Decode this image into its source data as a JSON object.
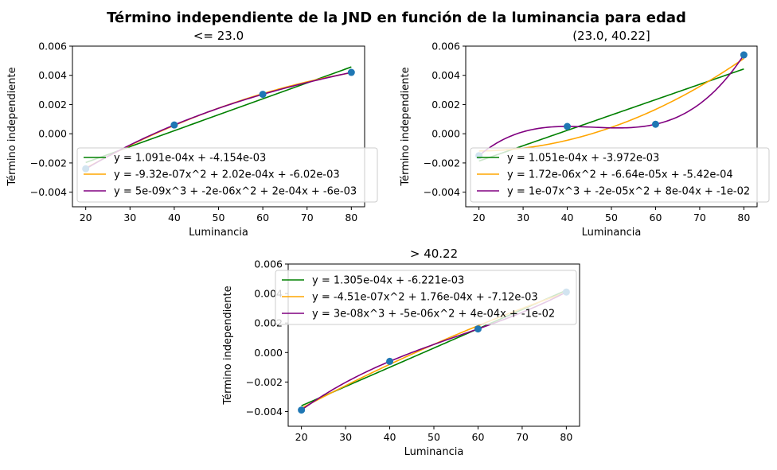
{
  "figure": {
    "suptitle": "Término independiente de la JND en función de la luminancia para edad"
  },
  "chart_data": [
    {
      "type": "scatter",
      "title": "<= 23.0",
      "xlabel": "Luminancia",
      "ylabel": "Término independiente",
      "xlim": [
        17,
        83
      ],
      "ylim": [
        -0.005,
        0.006
      ],
      "xticks": [
        20,
        30,
        40,
        50,
        60,
        70,
        80
      ],
      "yticks": [
        -0.004,
        -0.002,
        0.0,
        0.002,
        0.004,
        0.006
      ],
      "ytick_labels": [
        "−0.004",
        "−0.002",
        "0.000",
        "0.002",
        "0.004",
        "0.006"
      ],
      "legend_loc": "lower right",
      "points": {
        "x": [
          20,
          40,
          60,
          80
        ],
        "y": [
          -0.0024,
          0.0006,
          0.0027,
          0.0042
        ],
        "color": "#1f77b4"
      },
      "fits": [
        {
          "name": "y = 1.091e-04x + -4.154e-03",
          "color": "#008000",
          "coeffs": [
            -0.004154,
            0.0001091
          ]
        },
        {
          "name": "y = -9.32e-07x^2 + 2.02e-04x + -6.02e-03",
          "color": "#ffa500",
          "coeffs": [
            -0.00602,
            0.000202,
            -9.32e-07
          ]
        },
        {
          "name": "y = 5e-09x^3 + -2e-06x^2 + 2e-04x + -6e-03",
          "color": "#800080",
          "through_points": true
        }
      ]
    },
    {
      "type": "scatter",
      "title": "(23.0, 40.22]",
      "xlabel": "Luminancia",
      "ylabel": "Término independiente",
      "xlim": [
        17,
        83
      ],
      "ylim": [
        -0.005,
        0.006
      ],
      "xticks": [
        20,
        30,
        40,
        50,
        60,
        70,
        80
      ],
      "yticks": [
        -0.004,
        -0.002,
        0.0,
        0.002,
        0.004,
        0.006
      ],
      "ytick_labels": [
        "−0.004",
        "−0.002",
        "0.000",
        "0.002",
        "0.004",
        "0.006"
      ],
      "legend_loc": "lower right",
      "points": {
        "x": [
          20,
          40,
          60,
          80
        ],
        "y": [
          -0.0015,
          0.0005,
          0.00065,
          0.0054
        ],
        "color": "#1f77b4"
      },
      "fits": [
        {
          "name": "y = 1.051e-04x + -3.972e-03",
          "color": "#008000",
          "coeffs": [
            -0.003972,
            0.0001051
          ]
        },
        {
          "name": "y = 1.72e-06x^2 + -6.64e-05x + -5.42e-04",
          "color": "#ffa500",
          "coeffs": [
            -0.000542,
            -6.64e-05,
            1.72e-06
          ]
        },
        {
          "name": "y = 1e-07x^3 + -2e-05x^2 + 8e-04x + -1e-02",
          "color": "#800080",
          "through_points": true
        }
      ]
    },
    {
      "type": "scatter",
      "title": "> 40.22",
      "xlabel": "Luminancia",
      "ylabel": "Término independiente",
      "xlim": [
        17,
        83
      ],
      "ylim": [
        -0.005,
        0.006
      ],
      "xticks": [
        20,
        30,
        40,
        50,
        60,
        70,
        80
      ],
      "yticks": [
        -0.004,
        -0.002,
        0.0,
        0.002,
        0.004,
        0.006
      ],
      "ytick_labels": [
        "−0.004",
        "−0.002",
        "0.000",
        "0.002",
        "0.004",
        "0.006"
      ],
      "legend_loc": "upper left",
      "points": {
        "x": [
          20,
          40,
          60,
          80
        ],
        "y": [
          -0.0039,
          -0.0006,
          0.0016,
          0.0041
        ],
        "color": "#1f77b4"
      },
      "fits": [
        {
          "name": "y = 1.305e-04x + -6.221e-03",
          "color": "#008000",
          "coeffs": [
            -0.006221,
            0.0001305
          ]
        },
        {
          "name": "y = -4.51e-07x^2 + 1.76e-04x + -7.12e-03",
          "color": "#ffa500",
          "coeffs": [
            -0.00712,
            0.000176,
            -4.51e-07
          ]
        },
        {
          "name": "y = 3e-08x^3 + -5e-06x^2 + 4e-04x + -1e-02",
          "color": "#800080",
          "through_points": true
        }
      ]
    }
  ]
}
